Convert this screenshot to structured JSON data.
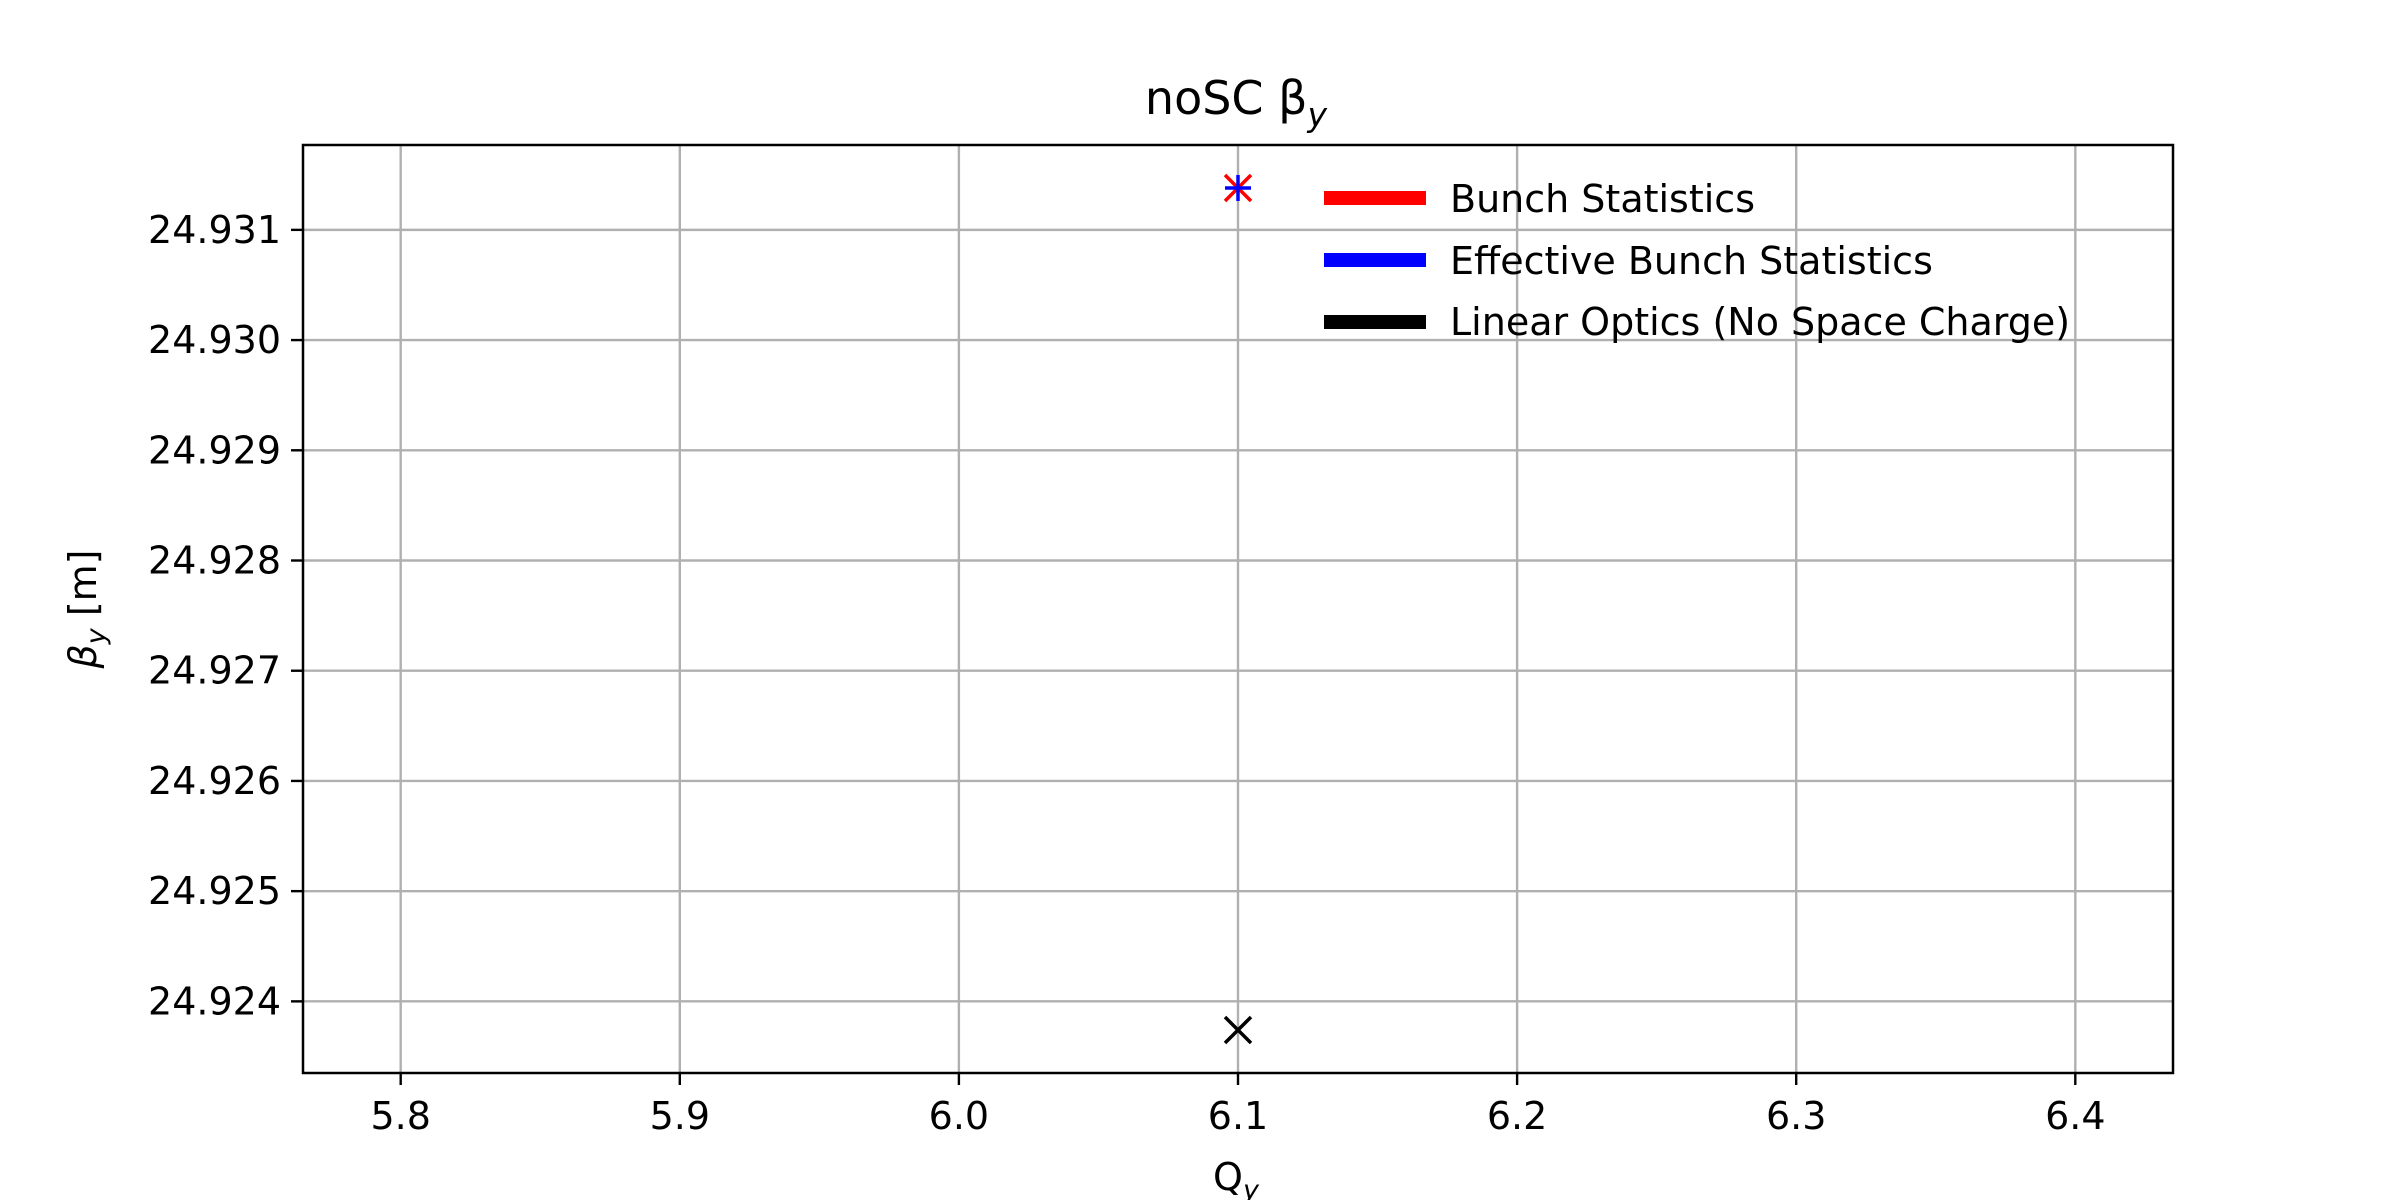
{
  "chart_data": {
    "type": "scatter",
    "title": "noSC β",
    "title_subscript": "y",
    "xlabel": "Q",
    "xlabel_subscript": "y",
    "ylabel": "β",
    "ylabel_subscript": "y",
    "ylabel_unit": " [m]",
    "xlim": [
      5.765,
      6.435
    ],
    "ylim": [
      24.92335,
      24.93177
    ],
    "xticks": [
      5.8,
      5.9,
      6.0,
      6.1,
      6.2,
      6.3,
      6.4
    ],
    "xtick_labels": [
      "5.8",
      "5.9",
      "6.0",
      "6.1",
      "6.2",
      "6.3",
      "6.4"
    ],
    "yticks": [
      24.924,
      24.925,
      24.926,
      24.927,
      24.928,
      24.929,
      24.93,
      24.931
    ],
    "ytick_labels": [
      "24.924",
      "24.925",
      "24.926",
      "24.927",
      "24.928",
      "24.929",
      "24.930",
      "24.931"
    ],
    "grid": true,
    "legend_position": "top-right",
    "series": [
      {
        "name": "Bunch Statistics",
        "color": "#ff0000",
        "marker": "x",
        "points": [
          {
            "x": 6.1,
            "y": 24.93138
          }
        ]
      },
      {
        "name": "Effective Bunch Statistics",
        "color": "#0000ff",
        "marker": "+",
        "points": [
          {
            "x": 6.1,
            "y": 24.93138
          }
        ]
      },
      {
        "name": "Linear Optics (No Space Charge)",
        "color": "#000000",
        "marker": "x",
        "points": [
          {
            "x": 6.1,
            "y": 24.92374
          }
        ]
      }
    ]
  }
}
